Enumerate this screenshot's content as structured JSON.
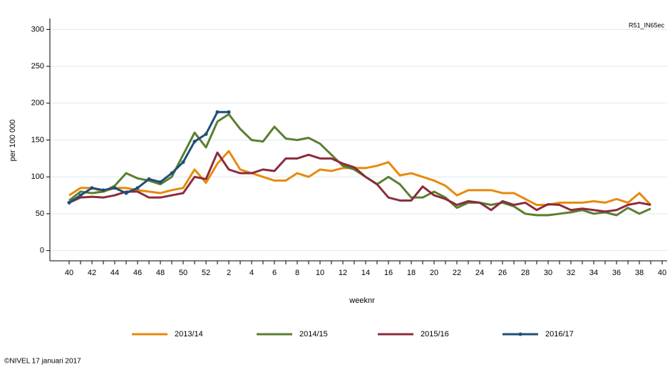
{
  "chart_data": {
    "type": "line",
    "corner_label": "R51_IN65ec",
    "ylabel": "per 100 000",
    "xlabel": "weeknr",
    "footer": "©NIVEL 17 januari 2017",
    "categories": [
      "40",
      null,
      "42",
      null,
      "44",
      null,
      "46",
      null,
      "48",
      null,
      "50",
      null,
      "52",
      null,
      "2",
      null,
      "4",
      null,
      "6",
      null,
      "8",
      null,
      "10",
      null,
      "12",
      null,
      "14",
      null,
      "16",
      null,
      "18",
      null,
      "20",
      null,
      "22",
      null,
      "24",
      null,
      "26",
      null,
      "28",
      null,
      "30",
      null,
      "32",
      null,
      "34",
      null,
      "36",
      null,
      "38",
      null,
      "40"
    ],
    "ylim": [
      -10,
      310
    ],
    "yticks": [
      0,
      50,
      100,
      150,
      200,
      250,
      300
    ],
    "grid": true,
    "legend": "bottom",
    "series": [
      {
        "name": "2013/14",
        "color": "#e8890c",
        "markers": false,
        "values": [
          75,
          85,
          85,
          80,
          85,
          85,
          82,
          80,
          78,
          82,
          85,
          110,
          92,
          118,
          135,
          110,
          105,
          100,
          95,
          95,
          105,
          100,
          110,
          108,
          112,
          112,
          112,
          115,
          120,
          102,
          105,
          100,
          95,
          88,
          75,
          82,
          82,
          82,
          78,
          78,
          70,
          62,
          62,
          65,
          65,
          65,
          67,
          65,
          70,
          65,
          78,
          62,
          null
        ]
      },
      {
        "name": "2014/15",
        "color": "#5a7f2e",
        "markers": false,
        "values": [
          68,
          80,
          78,
          80,
          88,
          105,
          98,
          95,
          90,
          100,
          130,
          160,
          140,
          175,
          185,
          165,
          150,
          148,
          168,
          152,
          150,
          153,
          145,
          130,
          115,
          110,
          100,
          90,
          100,
          90,
          72,
          72,
          80,
          72,
          58,
          65,
          65,
          62,
          65,
          60,
          50,
          48,
          48,
          50,
          52,
          55,
          50,
          52,
          48,
          58,
          50,
          57,
          null
        ]
      },
      {
        "name": "2015/16",
        "color": "#8b2c3a",
        "markers": false,
        "values": [
          65,
          72,
          73,
          72,
          75,
          80,
          80,
          72,
          72,
          75,
          78,
          100,
          97,
          133,
          110,
          105,
          105,
          110,
          108,
          125,
          125,
          130,
          125,
          125,
          118,
          113,
          100,
          90,
          72,
          68,
          68,
          87,
          75,
          70,
          62,
          67,
          65,
          55,
          67,
          62,
          65,
          55,
          63,
          62,
          55,
          57,
          55,
          53,
          55,
          62,
          65,
          62,
          null
        ]
      },
      {
        "name": "2016/17",
        "color": "#1f4e79",
        "markers": true,
        "values": [
          65,
          75,
          85,
          82,
          85,
          78,
          85,
          97,
          93,
          105,
          120,
          148,
          158,
          188,
          188,
          null,
          null,
          null,
          null,
          null,
          null,
          null,
          null,
          null,
          null,
          null,
          null,
          null,
          null,
          null,
          null,
          null,
          null,
          null,
          null,
          null,
          null,
          null,
          null,
          null,
          null,
          null,
          null,
          null,
          null,
          null,
          null,
          null,
          null,
          null,
          null,
          null,
          null
        ]
      }
    ]
  }
}
